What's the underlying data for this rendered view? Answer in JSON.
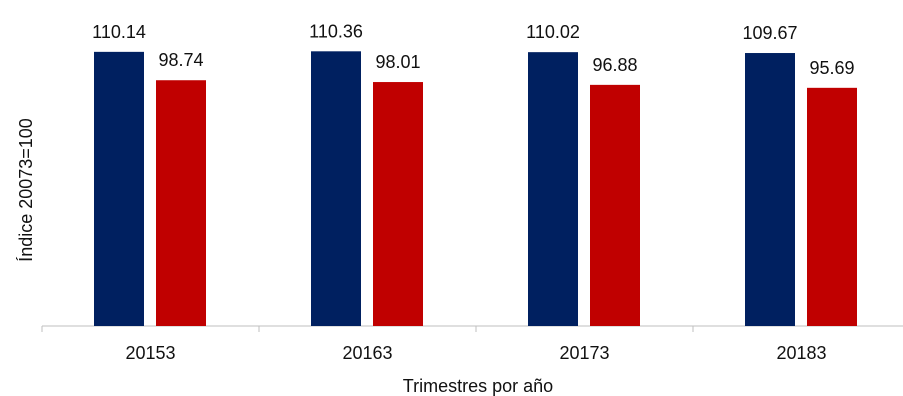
{
  "chart_data": {
    "type": "bar",
    "title": "",
    "xlabel": "Trimestres por año",
    "ylabel": "Índice 20073=100",
    "categories": [
      "20153",
      "20163",
      "20173",
      "20183"
    ],
    "series": [
      {
        "color": "#002060",
        "values": [
          110.14,
          110.36,
          110.02,
          109.67
        ],
        "labels": [
          "110.14",
          "110.36",
          "110.02",
          "109.67"
        ]
      },
      {
        "color": "#C00000",
        "values": [
          98.74,
          98.01,
          96.88,
          95.69
        ],
        "labels": [
          "98.74",
          "98.01",
          "96.88",
          "95.69"
        ]
      }
    ],
    "ylim": [
      0,
      114.1
    ],
    "grid": false,
    "legend": "none"
  }
}
